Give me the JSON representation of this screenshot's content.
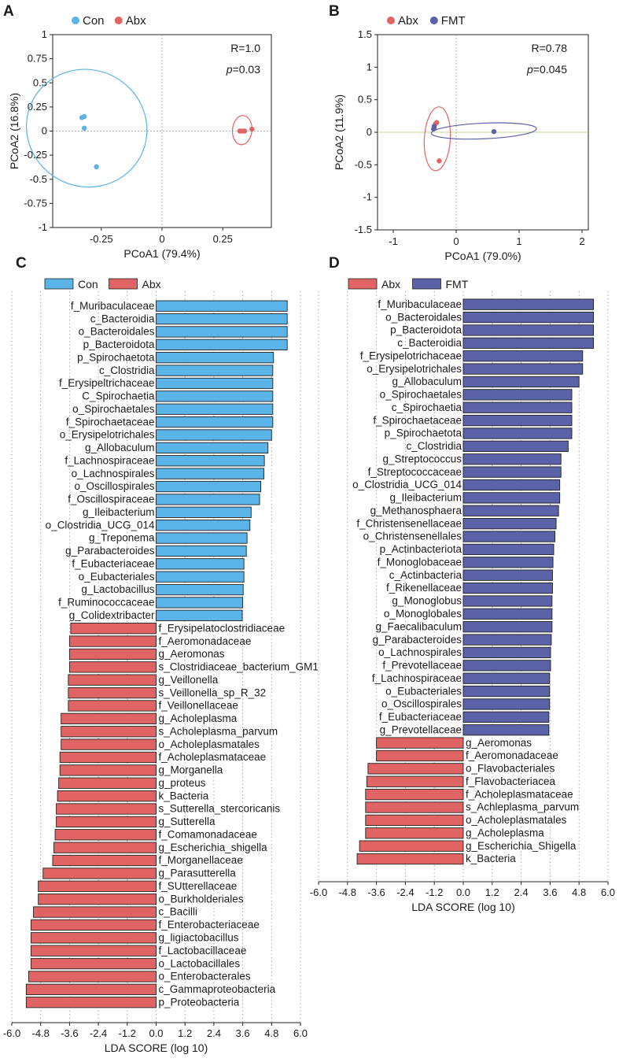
{
  "colors": {
    "con": "#5ab4e8",
    "abx": "#e06464",
    "fmt": "#5b62a8",
    "ellipse_con": "#5ab4e8",
    "ellipse_abx": "#e06464",
    "ellipse_fmt": "#5b62a8"
  },
  "panels": {
    "A": "A",
    "B": "B",
    "C": "C",
    "D": "D"
  },
  "chart_data": [
    {
      "type": "scatter",
      "panel": "A",
      "legend": [
        "Con",
        "Abx"
      ],
      "stats": {
        "r": "R=1.0",
        "p_prefix": "p",
        "p_value": "=0.03"
      },
      "xlabel": "PCoA1 (79.4%)",
      "ylabel": "PCoA2 (16.8%)",
      "xlim": [
        -0.45,
        0.45
      ],
      "ylim": [
        -1,
        1
      ],
      "xticks": [
        -0.25,
        0,
        0.25
      ],
      "xtick_labels": [
        "-0.25",
        "0",
        "0.25"
      ],
      "yticks": [
        -1,
        -0.75,
        -0.5,
        -0.25,
        0,
        0.25,
        0.5,
        0.75,
        1
      ],
      "ytick_labels": [
        "-1",
        "-0.75",
        "-0.5",
        "-0.25",
        "0",
        "0.25",
        "0.5",
        "0.75",
        "1"
      ],
      "series": [
        {
          "name": "Con",
          "points": [
            [
              -0.33,
              0.14
            ],
            [
              -0.32,
              0.15
            ],
            [
              -0.32,
              0.03
            ],
            [
              -0.27,
              -0.37
            ]
          ],
          "ellipse": {
            "cx": -0.31,
            "cy": 0.03,
            "rx": 0.48,
            "ry": 0.025,
            "angle_deg": -63.5
          }
        },
        {
          "name": "Abx",
          "points": [
            [
              0.32,
              0.0
            ],
            [
              0.33,
              0.0
            ],
            [
              0.34,
              0.0
            ],
            [
              0.37,
              0.02
            ]
          ],
          "ellipse": {
            "cx": 0.33,
            "cy": 0.01,
            "rx": 0.08,
            "ry": 0.006,
            "angle_deg": 5
          }
        }
      ]
    },
    {
      "type": "scatter",
      "panel": "B",
      "legend": [
        "Abx",
        "FMT"
      ],
      "stats": {
        "r": "R=0.78",
        "p_prefix": "p",
        "p_value": "=0.045"
      },
      "xlabel": "PCoA1 (79.0%)",
      "ylabel": "PCoA2 (11.9%)",
      "xlim": [
        -1.25,
        2.1
      ],
      "ylim": [
        -1.5,
        1.5
      ],
      "xticks": [
        -1,
        0,
        1,
        2
      ],
      "xtick_labels": [
        "-1",
        "0",
        "1",
        "2"
      ],
      "yticks": [
        -1.5,
        -1,
        -0.5,
        0,
        0.5,
        1,
        1.5
      ],
      "ytick_labels": [
        "-1.5",
        "-1",
        "-0.5",
        "0",
        "0.5",
        "1",
        "1.5"
      ],
      "series": [
        {
          "name": "Abx",
          "points": [
            [
              -0.33,
              0.13
            ],
            [
              -0.31,
              0.15
            ],
            [
              -0.35,
              0.06
            ],
            [
              -0.27,
              -0.44
            ]
          ],
          "ellipse": {
            "cx": -0.3,
            "cy": -0.1,
            "rx": 0.98,
            "ry": 0.02,
            "angle_deg": -86.5
          }
        },
        {
          "name": "FMT",
          "points": [
            [
              -0.36,
              0.05
            ],
            [
              -0.35,
              0.09
            ],
            [
              0.6,
              0.01
            ]
          ],
          "ellipse": {
            "cx": 0.44,
            "cy": 0.02,
            "rx": 1.62,
            "ry": 0.012,
            "angle_deg": -2.5
          }
        }
      ]
    },
    {
      "type": "bar",
      "orientation": "horizontal",
      "panel": "C",
      "legend": [
        "Con",
        "Abx"
      ],
      "xlabel": "LDA SCORE (log 10)",
      "xlim": [
        -6.0,
        6.0
      ],
      "xticks": [
        -6.0,
        -4.8,
        -3.6,
        -2.4,
        -1.2,
        0.0,
        1.2,
        2.4,
        3.6,
        4.8,
        6.0
      ],
      "xtick_labels": [
        "-6.0",
        "-4.8",
        "-3.6",
        "-2.4",
        "-1.2",
        "0.0",
        "1.2",
        "2.4",
        "3.6",
        "4.8",
        "6.0"
      ],
      "series": [
        {
          "name": "Con",
          "categories": [
            "f_Muribaculaceae",
            "c_Bacteroidia",
            "o_Bacteroidales",
            "p_Bacteroidota",
            "p_Spirochaetota",
            "c_Clostridia",
            "f_Erysipeltrichaceae",
            "C_Spirochaetia",
            "o_Spirochaetales",
            "f_Spirochaetaceae",
            "o_Erysipelotrichales",
            "g_Allobaculum",
            "f_Lachnospiraceae",
            "o_Lachnospirales",
            "o_Oscillospirales",
            "f_Oscillospiraceae",
            "g_Ileibacterium",
            "o_Clostridia_UCG_014",
            "g_Treponema",
            "g_Parabacteroides",
            "f_Eubacteriaceae",
            "o_Eubacteriales",
            "g_Lactobacillus",
            "f_Ruminococcaceae",
            "g_Colidextribacter"
          ],
          "values": [
            5.45,
            5.45,
            5.45,
            5.45,
            4.88,
            4.85,
            4.85,
            4.85,
            4.85,
            4.85,
            4.8,
            4.65,
            4.5,
            4.48,
            4.35,
            4.3,
            3.95,
            3.9,
            3.78,
            3.75,
            3.65,
            3.65,
            3.62,
            3.6,
            3.58
          ]
        },
        {
          "name": "Abx",
          "categories": [
            "f_Erysipelatoclostridiaceae",
            "f_Aeromonadaceae",
            "g_Aeromonas",
            "s_Clostridiaceae_bacterium_GM1",
            "g_Veillonella",
            "s_Veillonella_sp_R_32",
            "f_Veillonellaceae",
            "g_Acholeplasma",
            "s_Acholeplasma_parvum",
            "o_Acholeplasmatales",
            "f_Acholeplasmataceae",
            "g_Morganella",
            "g_proteus",
            "k_Bacteria",
            "s_Sutterella_stercoricanis",
            "g_Sutterella",
            "f_Comamonadaceae",
            "g_Escherichia_shigella",
            "f_Morganellaceae",
            "g_Parasutterella",
            "f_SUtterellaceae",
            "o_Burkholderiales",
            "c_Bacilli",
            "f_Enterobacteriaceae",
            "g_ligiactobacillus",
            "f_Lactobacillaceae",
            "o_Lactobacillales",
            "o_Enterobacterales",
            "c_Gammaproteobacteria",
            "p_Proteobacteria"
          ],
          "values": [
            -3.55,
            -3.6,
            -3.6,
            -3.6,
            -3.65,
            -3.65,
            -3.65,
            -3.95,
            -3.95,
            -3.95,
            -4.0,
            -4.0,
            -4.05,
            -4.1,
            -4.15,
            -4.15,
            -4.2,
            -4.25,
            -4.3,
            -4.7,
            -4.9,
            -4.9,
            -5.1,
            -5.2,
            -5.2,
            -5.2,
            -5.2,
            -5.3,
            -5.4,
            -5.4
          ]
        }
      ]
    },
    {
      "type": "bar",
      "orientation": "horizontal",
      "panel": "D",
      "legend": [
        "Abx",
        "FMT"
      ],
      "xlabel": "LDA SCORE (log 10)",
      "xlim": [
        -6.0,
        6.0
      ],
      "xticks": [
        -6.0,
        -4.8,
        -3.6,
        -2.4,
        -1.2,
        0.0,
        1.2,
        2.4,
        3.6,
        4.8,
        6.0
      ],
      "xtick_labels": [
        "-6.0",
        "-4.8",
        "-3.6",
        "-2.4",
        "-1.2",
        "0.0",
        "1.2",
        "2.4",
        "3.6",
        "4.8",
        "6.0"
      ],
      "series": [
        {
          "name": "FMT",
          "categories": [
            "f_Muribaculaceae",
            "o_Bacteroidales",
            "p_Bacteroidota",
            "c_Bacteroidia",
            "f_Erysipelotrichaceae",
            "o_Erysipelotrichales",
            "g_Allobaculum",
            "o_Spirochaetales",
            "c_Spirochaetia",
            "f_Spirochaetaceae",
            "p_Spirochaetota",
            "c_Clostridia",
            "g_Streptococcus",
            "f_Streptococcaceae",
            "o_Clostridia_UCG_014",
            "g_Ileibacterium",
            "g_Methanosphaera",
            "f_Christensenellaceae",
            "o_Christensenellales",
            "p_Actinbacteriota",
            "f_Monoglobaceae",
            "c_Actinbacteria",
            "f_Rikenellaceae",
            "g_Monoglobus",
            "o_Monoglobales",
            "g_Faecalibaculum",
            "g_Parabacteroides",
            "o_Lachnospirales",
            "f_Prevotellaceae",
            "f_Lachnospiraceae",
            "o_Eubacteriales",
            "o_Oscillospirales",
            "f_Eubacteriaceae",
            "g_Prevotellaceae"
          ],
          "values": [
            5.4,
            5.4,
            5.4,
            5.4,
            4.95,
            4.95,
            4.8,
            4.5,
            4.5,
            4.5,
            4.5,
            4.35,
            4.05,
            4.05,
            4.0,
            4.0,
            3.95,
            3.85,
            3.8,
            3.75,
            3.72,
            3.7,
            3.7,
            3.68,
            3.68,
            3.68,
            3.65,
            3.62,
            3.62,
            3.58,
            3.58,
            3.58,
            3.55,
            3.55
          ]
        },
        {
          "name": "Abx",
          "categories": [
            "g_Aeromonas",
            "f_Aeromonadaceae",
            "o_Flavobacteriales",
            "f_Flavobacteriacea",
            "f_Acholeplasmataceae",
            "s_Achleplasma_parvum",
            "o_Acholeplasmatales",
            "g_Acholeplasma",
            "g_Escherichia_Shigella",
            "k_Bacteria"
          ],
          "values": [
            -3.6,
            -3.6,
            -3.95,
            -4.0,
            -4.05,
            -4.05,
            -4.05,
            -4.05,
            -4.3,
            -4.4
          ]
        }
      ]
    }
  ]
}
